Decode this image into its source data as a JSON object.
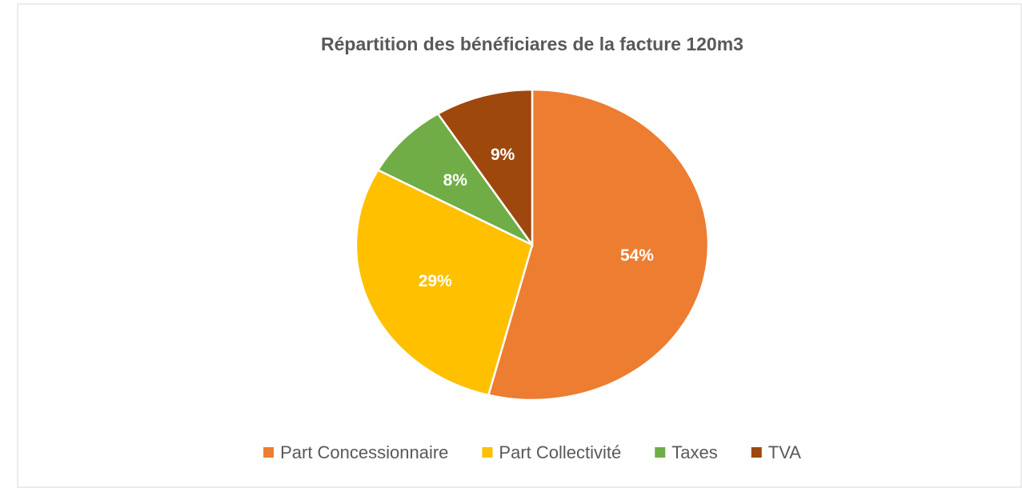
{
  "chart_data": {
    "type": "pie",
    "title": "Répartition des bénéficiares de la facture 120m3",
    "categories": [
      "Part Concessionnaire",
      "Part Collectivité",
      "Taxes",
      "TVA"
    ],
    "values": [
      54,
      29,
      8,
      9
    ],
    "value_labels": [
      "54%",
      "29%",
      "8%",
      "9%"
    ],
    "colors": [
      "#ED7D31",
      "#FFC000",
      "#70AD47",
      "#9E480E"
    ],
    "legend": "bottom"
  }
}
